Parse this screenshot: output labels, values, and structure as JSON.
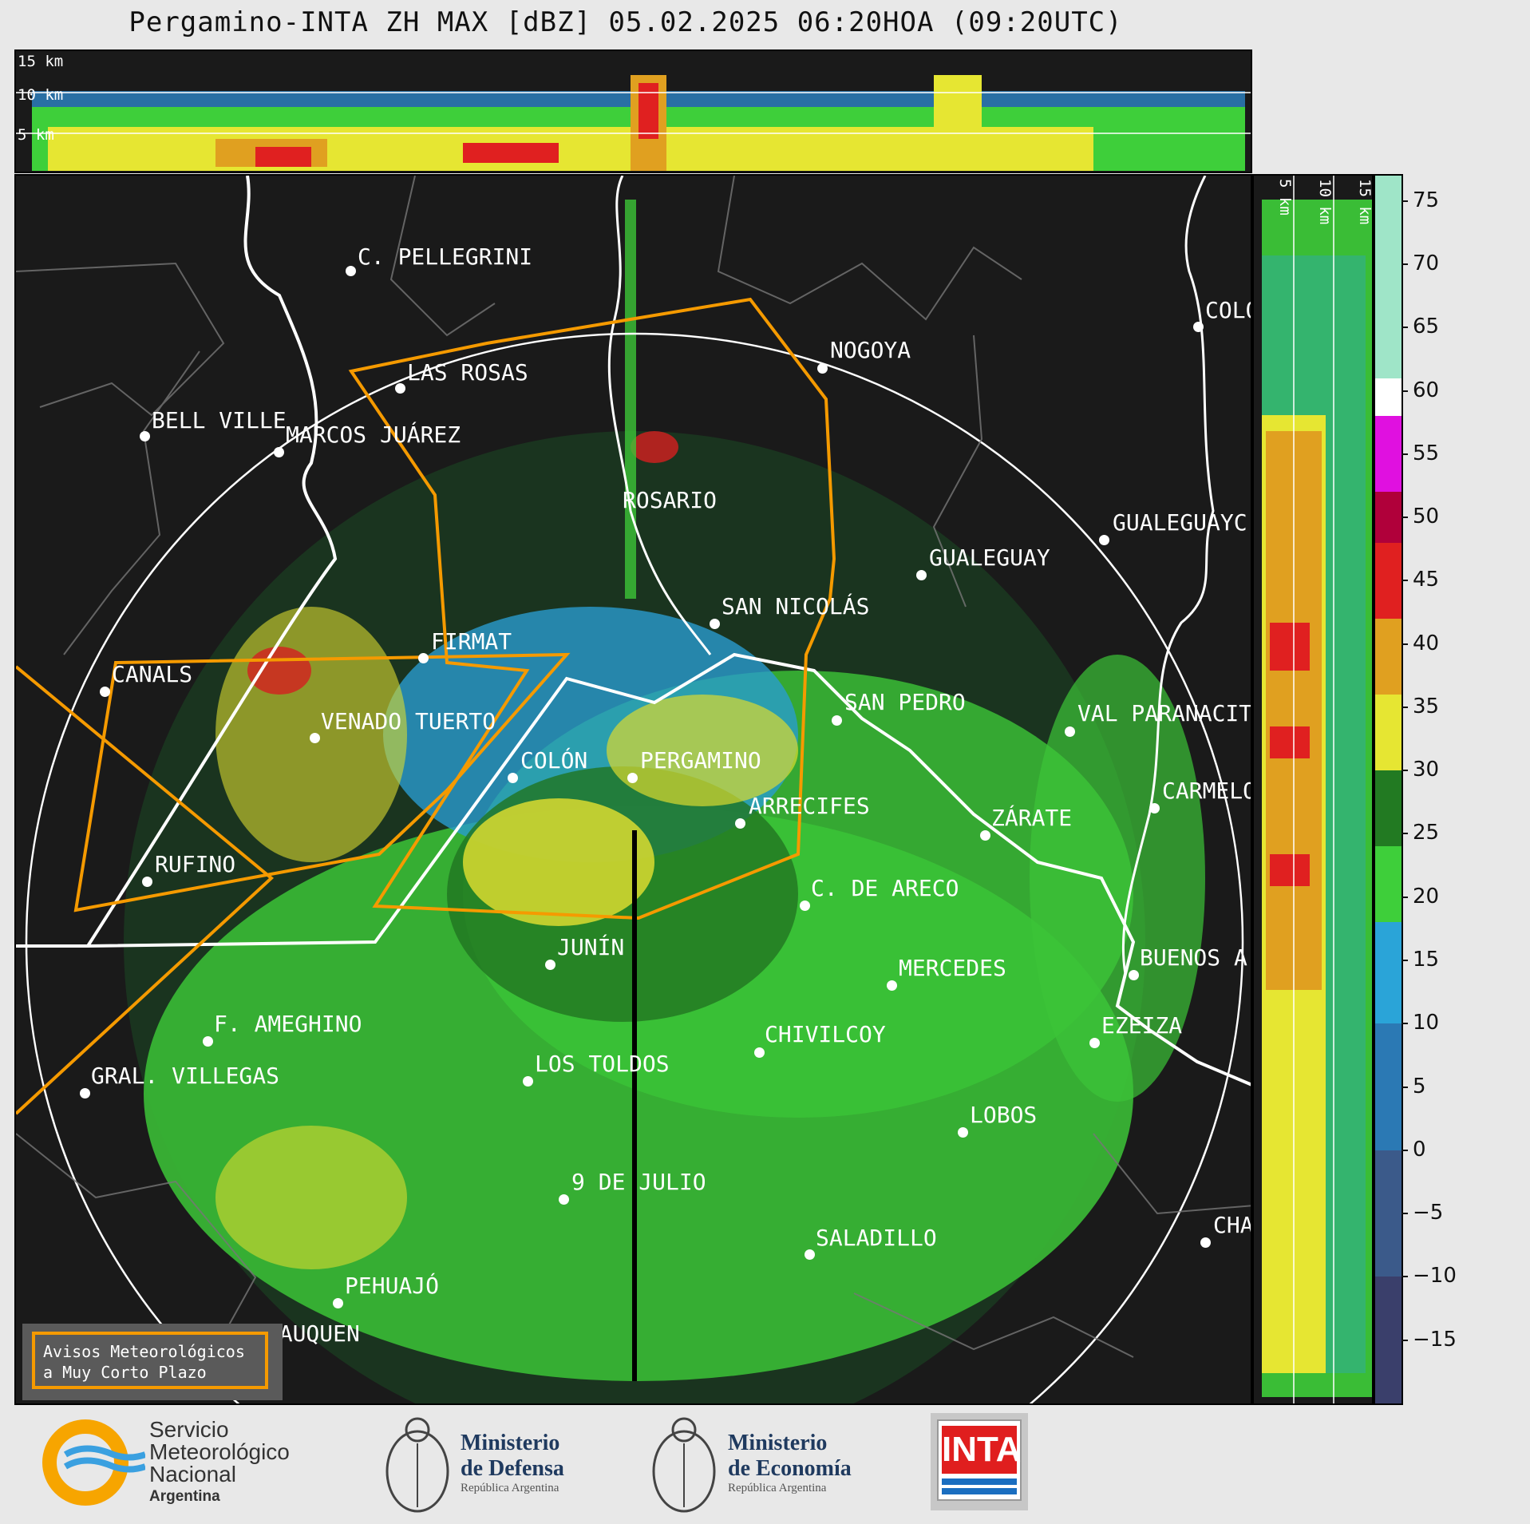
{
  "title": "Pergamino-INTA ZH MAX [dBZ] 05.02.2025 06:20HOA (09:20UTC)",
  "height_labels": [
    "15 km",
    "10 km",
    "5 km"
  ],
  "colorbar": {
    "ticks": [
      "75",
      "70",
      "65",
      "60",
      "55",
      "50",
      "45",
      "40",
      "35",
      "30",
      "25",
      "20",
      "15",
      "10",
      "5",
      "0",
      "−5",
      "−10",
      "−15"
    ],
    "stops": [
      {
        "from": -20,
        "to": -10,
        "color": "#3a3f6b"
      },
      {
        "from": -10,
        "to": 0,
        "color": "#3b5a8a"
      },
      {
        "from": 0,
        "to": 10,
        "color": "#2b79b4"
      },
      {
        "from": 10,
        "to": 18,
        "color": "#2aa4d8"
      },
      {
        "from": 18,
        "to": 24,
        "color": "#3ecf3a"
      },
      {
        "from": 24,
        "to": 30,
        "color": "#227a22"
      },
      {
        "from": 30,
        "to": 36,
        "color": "#e6e632"
      },
      {
        "from": 36,
        "to": 42,
        "color": "#e0a020"
      },
      {
        "from": 42,
        "to": 48,
        "color": "#e02020"
      },
      {
        "from": 48,
        "to": 52,
        "color": "#b0003a"
      },
      {
        "from": 52,
        "to": 58,
        "color": "#e010e0"
      },
      {
        "from": 58,
        "to": 61,
        "color": "#ffffff"
      },
      {
        "from": 61,
        "to": 77,
        "color": "#9fe5c8"
      }
    ]
  },
  "cities": [
    {
      "name": "C. PELLEGRINI"
    },
    {
      "name": "LAS ROSAS"
    },
    {
      "name": "NOGOYA"
    },
    {
      "name": "BELL VILLE"
    },
    {
      "name": "MARCOS JUÁREZ"
    },
    {
      "name": "ROSARIO"
    },
    {
      "name": "GUALEGUAY"
    },
    {
      "name": "GUALEGUAYC"
    },
    {
      "name": "COLO"
    },
    {
      "name": "SAN NICOLÁS"
    },
    {
      "name": "FIRMAT"
    },
    {
      "name": "CANALS"
    },
    {
      "name": "SAN PEDRO"
    },
    {
      "name": "VAL PARANACIT"
    },
    {
      "name": "VENADO TUERTO"
    },
    {
      "name": "COLÓN"
    },
    {
      "name": "PERGAMINO"
    },
    {
      "name": "CARMELO"
    },
    {
      "name": "ARRECIFES"
    },
    {
      "name": "ZÁRATE"
    },
    {
      "name": "RUFINO"
    },
    {
      "name": "C. DE ARECO"
    },
    {
      "name": "JUNÍN"
    },
    {
      "name": "BUENOS A"
    },
    {
      "name": "MERCEDES"
    },
    {
      "name": "F. AMEGHINO"
    },
    {
      "name": "EZEIZA"
    },
    {
      "name": "CHIVILCOY"
    },
    {
      "name": "GRAL. VILLEGAS"
    },
    {
      "name": "LOS TOLDOS"
    },
    {
      "name": "LOBOS"
    },
    {
      "name": "9 DE JULIO"
    },
    {
      "name": "SALADILLO"
    },
    {
      "name": "CHA"
    },
    {
      "name": "PEHUAJÓ"
    },
    {
      "name": "TRENQUE LAUQUEN"
    }
  ],
  "avisos_box": {
    "line1": "Avisos Meteorológicos",
    "line2": "a Muy Corto Plazo"
  },
  "footer": {
    "smn": {
      "line1": "Servicio",
      "line2": "Meteorológico",
      "line3": "Nacional",
      "line4": "Argentina"
    },
    "defensa": {
      "line1": "Ministerio",
      "line2": "de Defensa",
      "line3": "República Argentina"
    },
    "economia": {
      "line1": "Ministerio",
      "line2": "de Economía",
      "line3": "República Argentina"
    },
    "inta": {
      "text": "INTA"
    }
  }
}
